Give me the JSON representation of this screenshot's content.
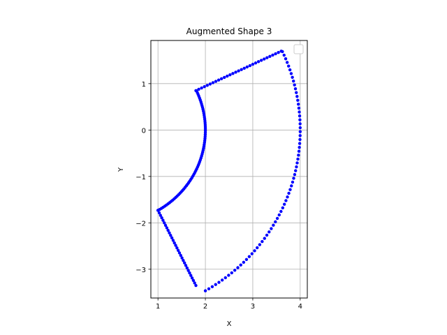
{
  "chart_data": {
    "type": "scatter",
    "title": "Augmented Shape 3",
    "xlabel": "X",
    "ylabel": "Y",
    "xlim": [
      0.85,
      4.15
    ],
    "ylim": [
      -3.62,
      1.93
    ],
    "xticks": [
      1,
      2,
      3,
      4
    ],
    "yticks": [
      1,
      0,
      -1,
      -2,
      -3
    ],
    "xtick_labels": [
      "1",
      "2",
      "3",
      "4"
    ],
    "ytick_labels": [
      "1",
      "0",
      "−1",
      "−2",
      "−3"
    ],
    "grid": true,
    "legend": {
      "placement": "top-right",
      "entries": []
    },
    "series": [
      {
        "color": "#0000ff",
        "marker": "point",
        "outline": {
          "corners": [
            [
              2.0,
              0.0
            ],
            [
              4.0,
              0.0
            ]
          ],
          "shape": "annular-sector",
          "inner_radius": 2,
          "outer_radius": 4,
          "theta_start_deg": -60,
          "theta_end_deg": 25,
          "vertices": [
            [
              1.0,
              -1.73
            ],
            [
              1.8,
              0.85
            ],
            [
              3.6,
              1.7
            ],
            [
              1.8,
              -3.35
            ]
          ]
        }
      }
    ]
  },
  "colors": {
    "points": "#0000ff",
    "grid": "#b0b0b0",
    "axes": "#000000"
  }
}
